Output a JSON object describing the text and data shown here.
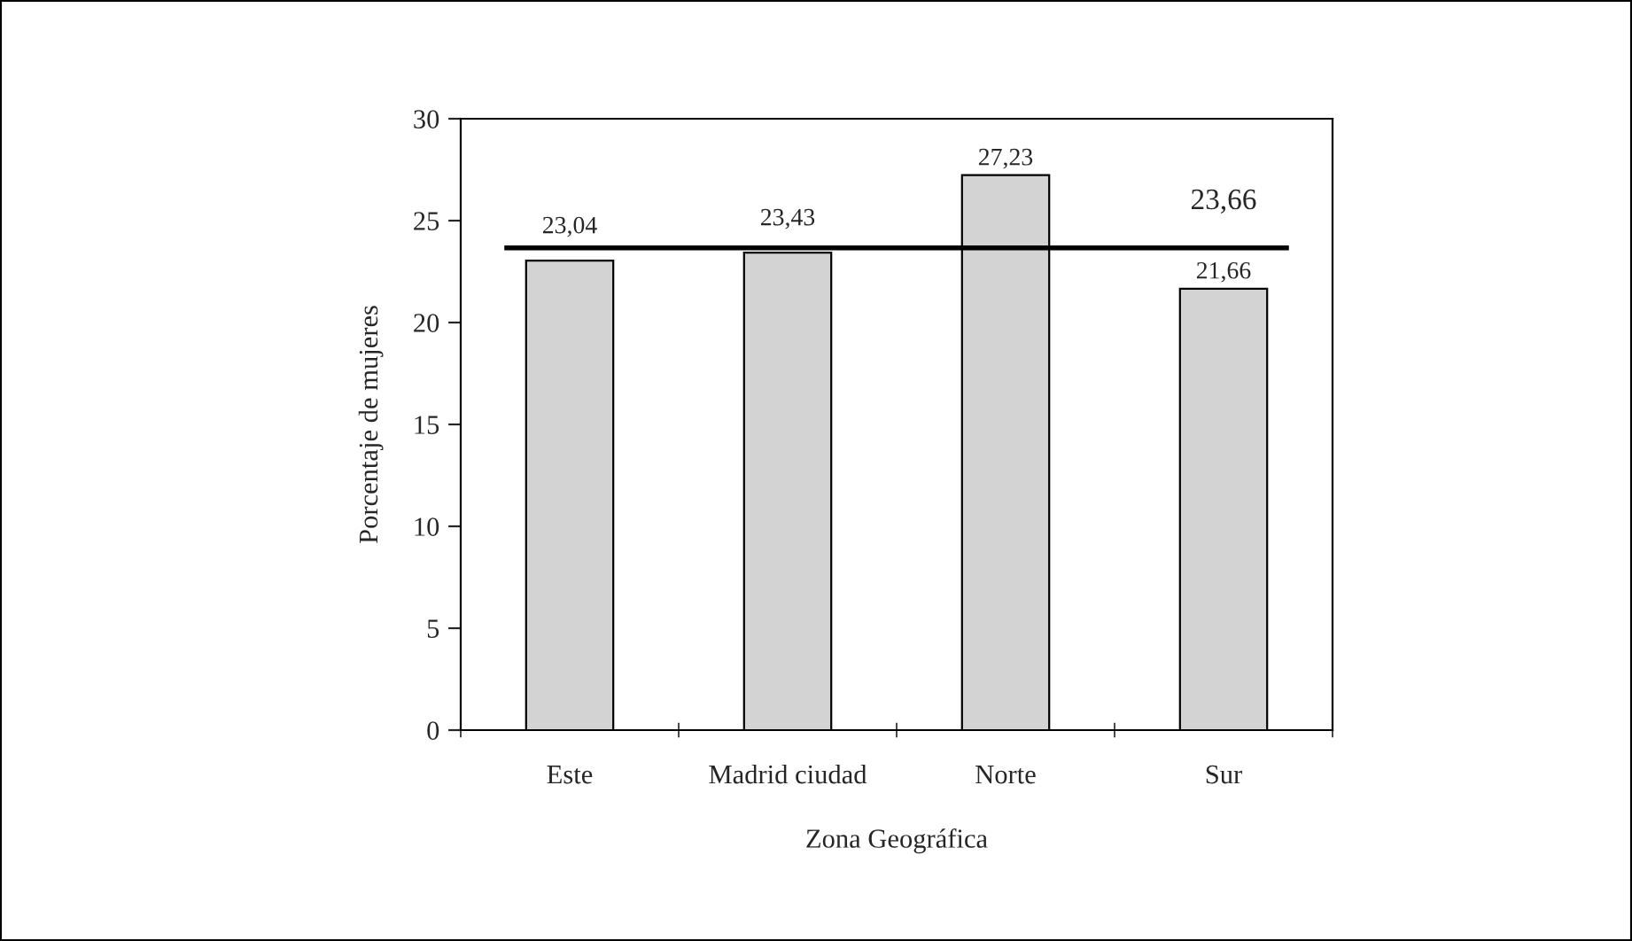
{
  "chart_data": {
    "type": "bar",
    "xlabel": "Zona Geográfica",
    "ylabel": "Porcentaje de mujeres",
    "categories": [
      "Este",
      "Madrid ciudad",
      "Norte",
      "Sur"
    ],
    "values": [
      23.04,
      23.43,
      27.23,
      21.66
    ],
    "value_labels": [
      "23,04",
      "23,43",
      "27,23",
      "21,66"
    ],
    "color": "#d3d3d3",
    "ylim": [
      0,
      30
    ],
    "yticks": [
      0,
      5,
      10,
      15,
      20,
      25,
      30
    ],
    "ref_lines": [
      {
        "axis": "y",
        "value": 23.66,
        "label": "23,66",
        "color": "#000000"
      }
    ],
    "grid": false,
    "legend": false
  }
}
